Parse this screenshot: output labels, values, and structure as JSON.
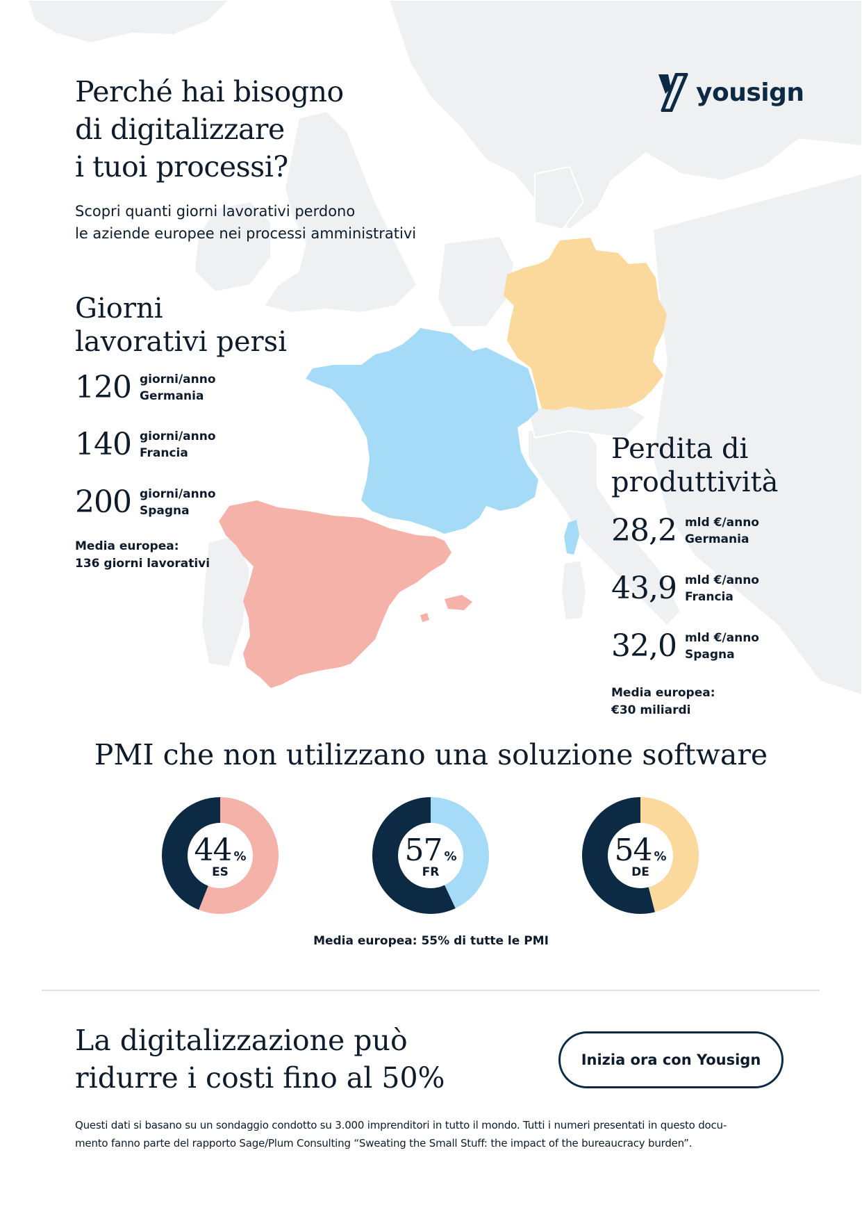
{
  "brand": {
    "name": "yousign",
    "colors": {
      "navy": "#0d2a45",
      "spain": "#f4b2a8",
      "france": "#a5dbf7",
      "germany": "#fbd99c",
      "land": "#eff0f2"
    }
  },
  "header": {
    "title_lines": [
      "Perché hai bisogno",
      "di digitalizzare",
      "i tuoi processi?"
    ],
    "subtitle_lines": [
      "Scopri quanti giorni lavorativi perdono",
      "le aziende europee nei processi amministrativi"
    ]
  },
  "days_lost": {
    "title_lines": [
      "Giorni",
      "lavorativi persi"
    ],
    "items": [
      {
        "value": "120",
        "unit": "giorni/anno",
        "country": "Germania"
      },
      {
        "value": "140",
        "unit": "giorni/anno",
        "country": "Francia"
      },
      {
        "value": "200",
        "unit": "giorni/anno",
        "country": "Spagna"
      }
    ],
    "average_lines": [
      "Media europea:",
      "136 giorni lavorativi"
    ]
  },
  "productivity_loss": {
    "title_lines": [
      "Perdita di",
      "produttività"
    ],
    "items": [
      {
        "value": "28,2",
        "unit": "mld €/anno",
        "country": "Germania"
      },
      {
        "value": "43,9",
        "unit": "mld €/anno",
        "country": "Francia"
      },
      {
        "value": "32,0",
        "unit": "mld €/anno",
        "country": "Spagna"
      }
    ],
    "average_lines": [
      "Media europea:",
      "€30 miliardi"
    ]
  },
  "pmi": {
    "title": "PMI che non utilizzano una soluzione software",
    "average": "Media europea: 55% di tutte le PMI"
  },
  "chart_data": [
    {
      "type": "pie",
      "title": "",
      "label": "ES",
      "value": 44,
      "unit": "%",
      "colors": {
        "value": "#0d2a45",
        "rest": "#f4b2a8"
      }
    },
    {
      "type": "pie",
      "title": "",
      "label": "FR",
      "value": 57,
      "unit": "%",
      "colors": {
        "value": "#0d2a45",
        "rest": "#a5dbf7"
      }
    },
    {
      "type": "pie",
      "title": "",
      "label": "DE",
      "value": 54,
      "unit": "%",
      "colors": {
        "value": "#0d2a45",
        "rest": "#fbd99c"
      }
    }
  ],
  "cta": {
    "title_lines": [
      "La digitalizzazione può",
      "ridurre i costi fino al 50%"
    ],
    "button_label": "Inizia ora con Yousign"
  },
  "footnote_lines": [
    "Questi dati si basano su un sondaggio condotto su 3.000 imprenditori in tutto il mondo. Tutti i numeri presentati in questo docu-",
    "mento fanno parte del rapporto Sage/Plum Consulting  “Sweating the Small Stuff: the impact of the bureaucracy burden”."
  ]
}
